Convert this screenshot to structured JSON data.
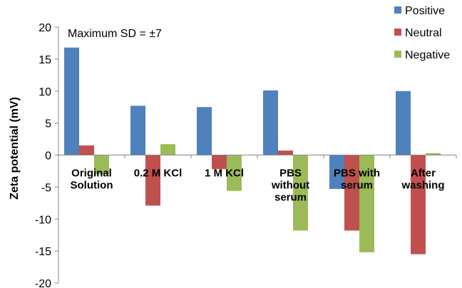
{
  "chart_data": {
    "type": "bar",
    "ylabel": "Zeta potential (mV)",
    "xlabel": "",
    "ylim": [
      -20,
      20
    ],
    "yticks": [
      20,
      15,
      10,
      5,
      0,
      -5,
      -10,
      -15,
      -20
    ],
    "annotation": "Maximum SD = ±7",
    "legend_position": "top-right",
    "categories": [
      [
        "Original",
        "Solution"
      ],
      [
        "0.2 M KCl"
      ],
      [
        "1 M KCl"
      ],
      [
        "PBS",
        "without",
        "serum"
      ],
      [
        "PBS with",
        "serum"
      ],
      [
        "After",
        "washing"
      ]
    ],
    "series": [
      {
        "name": "Positive",
        "color": "#4f81bd",
        "values": [
          16.8,
          7.7,
          7.5,
          10.1,
          -5.3,
          10.0
        ]
      },
      {
        "name": "Neutral",
        "color": "#c0504d",
        "values": [
          1.5,
          -7.9,
          -2.2,
          0.7,
          -11.8,
          -15.5
        ]
      },
      {
        "name": "Negative",
        "color": "#9bbb59",
        "values": [
          -3.0,
          1.7,
          -5.6,
          -11.8,
          -15.2,
          0.3
        ]
      }
    ]
  }
}
